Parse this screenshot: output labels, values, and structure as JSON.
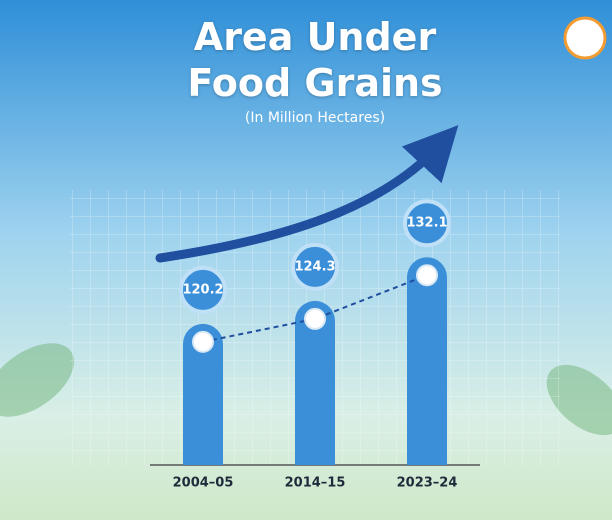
{
  "chart_data": {
    "type": "bar",
    "title": "Area Under Food Grains",
    "subtitle": "(In Million Hectares)",
    "categories": [
      "2004–05",
      "2014–15",
      "2023–24"
    ],
    "values": [
      120.2,
      124.3,
      132.1
    ],
    "color": "#3b8fd9",
    "ylim": [
      95,
      140
    ]
  }
}
